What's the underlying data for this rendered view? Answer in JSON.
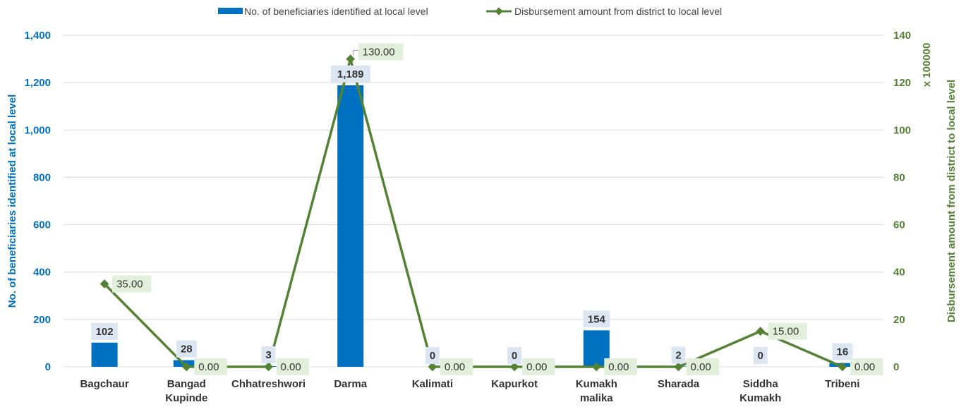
{
  "colors": {
    "bar": "#0070C0",
    "line": "#548235",
    "bar_label_bg": "#DCE6F2",
    "line_label_bg": "#E2EFDA",
    "grid": "#D9D9D9",
    "left_axis_text": "#0070C0",
    "right_axis_text": "#548235"
  },
  "chart_data": {
    "type": "bar",
    "categories": [
      [
        "Bagchaur"
      ],
      [
        "Bangad",
        "Kupinde"
      ],
      [
        "Chhatreshwori"
      ],
      [
        "Darma"
      ],
      [
        "Kalimati"
      ],
      [
        "Kapurkot"
      ],
      [
        "Kumakh",
        "malika"
      ],
      [
        "Sharada"
      ],
      [
        "Siddha",
        "Kumakh"
      ],
      [
        "Tribeni"
      ]
    ],
    "series": [
      {
        "name": "No. of beneficiaries identified at local level",
        "type": "bar",
        "axis": "left",
        "values": [
          102,
          28,
          3,
          1189,
          0,
          0,
          154,
          2,
          0,
          16
        ],
        "labels": [
          "102",
          "28",
          "3",
          "1,189",
          "0",
          "0",
          "154",
          "2",
          "0",
          "16"
        ]
      },
      {
        "name": "Disbursement amount from district to local level",
        "type": "line",
        "marker": "diamond",
        "axis": "right",
        "values": [
          35,
          0,
          0,
          130,
          0,
          0,
          0,
          0,
          15,
          0
        ],
        "labels": [
          "35.00",
          "0.00",
          "0.00",
          "130.00",
          "0.00",
          "0.00",
          "0.00",
          "0.00",
          "15.00",
          "0.00"
        ]
      }
    ],
    "y_left": {
      "label": "No. of beneficiaries identified at local level",
      "lim": [
        0,
        1400
      ],
      "ticks": [
        0,
        200,
        400,
        600,
        800,
        1000,
        1200,
        1400
      ],
      "tick_labels": [
        "0",
        "200",
        "400",
        "600",
        "800",
        "1,000",
        "1,200",
        "1,400"
      ]
    },
    "y_right": {
      "label": "Disbursement amount from district to local level",
      "unit": "x 100000",
      "lim": [
        0,
        140
      ],
      "ticks": [
        0,
        20,
        40,
        60,
        80,
        100,
        120,
        140
      ],
      "tick_labels": [
        "0",
        "20",
        "40",
        "60",
        "80",
        "100",
        "120",
        "140"
      ]
    },
    "grid": true,
    "legend_position": "top"
  }
}
